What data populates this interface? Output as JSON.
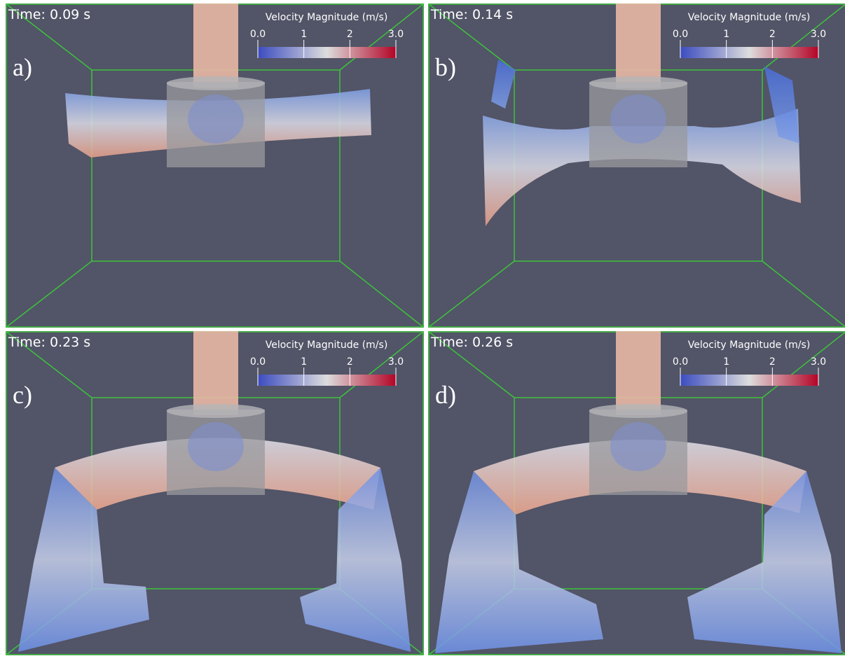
{
  "panels": [
    {
      "label": "a)",
      "time": "Time: 0.09 s",
      "colorbar": {
        "title": "Velocity Magnitude (m/s)",
        "ticks": [
          "0.0",
          "1",
          "2",
          "3.0"
        ]
      }
    },
    {
      "label": "b)",
      "time": "Time: 0.14 s",
      "colorbar": {
        "title": "Velocity Magnitude (m/s)",
        "ticks": [
          "0.0",
          "1",
          "2",
          "3.0"
        ]
      }
    },
    {
      "label": "c)",
      "time": "Time: 0.23 s",
      "colorbar": {
        "title": "Velocity Magnitude (m/s)",
        "ticks": [
          "0.0",
          "1",
          "2",
          "3.0"
        ]
      }
    },
    {
      "label": "d)",
      "time": "Time: 0.26 s",
      "colorbar": {
        "title": "Velocity Magnitude (m/s)",
        "ticks": [
          "0.0",
          "1",
          "2",
          "3.0"
        ]
      }
    }
  ]
}
